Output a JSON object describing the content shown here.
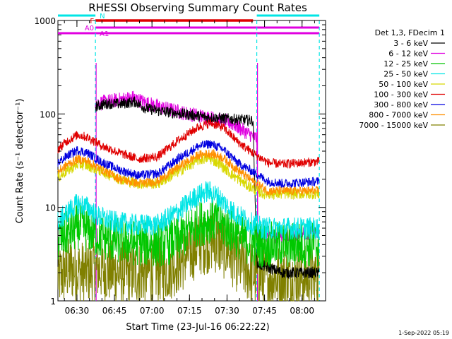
{
  "chart_data": {
    "type": "line",
    "title": "RHESSI Observing Summary Count Rates",
    "xlabel": "Start Time (23-Jul-16 06:22:22)",
    "ylabel": "Count Rate (s⁻¹ detector⁻¹)",
    "yscale": "log",
    "ylim": [
      1,
      1000
    ],
    "xlim_minutes": [
      0,
      107
    ],
    "y_ticks": [
      "1",
      "10",
      "100",
      "1000"
    ],
    "x_ticks": [
      {
        "label": "06:30",
        "t": 7.6
      },
      {
        "label": "06:45",
        "t": 22.6
      },
      {
        "label": "07:00",
        "t": 37.6
      },
      {
        "label": "07:15",
        "t": 52.6
      },
      {
        "label": "07:30",
        "t": 67.6
      },
      {
        "label": "07:45",
        "t": 82.6
      },
      {
        "label": "08:00",
        "t": 97.6
      }
    ],
    "timestamp": "1-Sep-2022 05:19",
    "legend_title": "Det 1,3, FDecim 1",
    "legend_position": "right",
    "flags": [
      {
        "label": "N",
        "color": "#00e5e5",
        "segments": [
          [
            0,
            15
          ],
          [
            79.5,
            104.5
          ]
        ]
      },
      {
        "label": "F",
        "color": "#e00000",
        "segments": [
          [
            15,
            78
          ]
        ]
      },
      {
        "label": "A0",
        "color": "#e000e0",
        "segments": [
          [
            15,
            104.5
          ]
        ]
      },
      {
        "label": "A1",
        "color": "#e000e0",
        "segments": [
          [
            0,
            104.5
          ]
        ]
      }
    ],
    "attenuator_lines": [
      {
        "t": 15,
        "color": "#e000e0"
      },
      {
        "t": 79.5,
        "color": "#e000e0"
      }
    ],
    "saa_lines": [
      {
        "t": 15,
        "color": "#00e5e5"
      },
      {
        "t": 79.5,
        "color": "#00e5e5"
      },
      {
        "t": 104.5,
        "color": "#00e5e5"
      }
    ],
    "series": [
      {
        "name": "3 - 6 keV",
        "color": "#000000",
        "points": [
          [
            15,
            120
          ],
          [
            20,
            130
          ],
          [
            25,
            128
          ],
          [
            31,
            135
          ],
          [
            35,
            115
          ],
          [
            40,
            108
          ],
          [
            50,
            100
          ],
          [
            60,
            92
          ],
          [
            70,
            88
          ],
          [
            78,
            85
          ],
          [
            79.5,
            2.5
          ],
          [
            90,
            2.0
          ],
          [
            104.5,
            2.0
          ]
        ]
      },
      {
        "name": "6 - 12 keV",
        "color": "#e000e0",
        "points": [
          [
            15,
            130
          ],
          [
            22,
            138
          ],
          [
            30,
            150
          ],
          [
            34,
            135
          ],
          [
            40,
            120
          ],
          [
            50,
            103
          ],
          [
            58,
            94
          ],
          [
            64,
            88
          ],
          [
            70,
            78
          ],
          [
            76,
            62
          ],
          [
            79.5,
            55
          ],
          [
            80,
            5
          ],
          [
            90,
            5
          ],
          [
            104.5,
            5.5
          ]
        ]
      },
      {
        "name": "12 - 25 keV",
        "color": "#00c800",
        "points": [
          [
            0,
            4.5
          ],
          [
            5,
            5.5
          ],
          [
            8,
            6.2
          ],
          [
            12,
            5.8
          ],
          [
            16,
            5
          ],
          [
            22,
            4.5
          ],
          [
            30,
            4.2
          ],
          [
            40,
            4.0
          ],
          [
            48,
            4.5
          ],
          [
            55,
            6.5
          ],
          [
            62,
            7.5
          ],
          [
            68,
            6
          ],
          [
            74,
            4.5
          ],
          [
            80,
            4
          ],
          [
            90,
            4
          ],
          [
            104.5,
            4
          ]
        ]
      },
      {
        "name": "25 - 50 keV",
        "color": "#00e5e5",
        "points": [
          [
            0,
            7
          ],
          [
            4,
            9
          ],
          [
            8,
            11
          ],
          [
            12,
            10
          ],
          [
            16,
            8
          ],
          [
            22,
            7
          ],
          [
            30,
            6.5
          ],
          [
            40,
            6.5
          ],
          [
            48,
            9
          ],
          [
            55,
            13
          ],
          [
            60,
            15
          ],
          [
            64,
            13
          ],
          [
            70,
            9
          ],
          [
            76,
            7
          ],
          [
            82,
            6
          ],
          [
            90,
            6
          ],
          [
            104.5,
            6
          ]
        ]
      },
      {
        "name": "50 - 100 keV",
        "color": "#d8d800",
        "points": [
          [
            0,
            21
          ],
          [
            4,
            25
          ],
          [
            8,
            29
          ],
          [
            12,
            28
          ],
          [
            18,
            24
          ],
          [
            25,
            20
          ],
          [
            32,
            18
          ],
          [
            40,
            18
          ],
          [
            48,
            24
          ],
          [
            56,
            32
          ],
          [
            60,
            34
          ],
          [
            64,
            30
          ],
          [
            70,
            22
          ],
          [
            76,
            17
          ],
          [
            82,
            14
          ],
          [
            90,
            14
          ],
          [
            104.5,
            14
          ]
        ]
      },
      {
        "name": "100 - 300 keV",
        "color": "#e00000",
        "points": [
          [
            0,
            42
          ],
          [
            4,
            52
          ],
          [
            8,
            60
          ],
          [
            12,
            56
          ],
          [
            18,
            45
          ],
          [
            25,
            38
          ],
          [
            32,
            33
          ],
          [
            40,
            35
          ],
          [
            48,
            52
          ],
          [
            56,
            72
          ],
          [
            61,
            80
          ],
          [
            66,
            72
          ],
          [
            72,
            50
          ],
          [
            78,
            38
          ],
          [
            84,
            30
          ],
          [
            90,
            29
          ],
          [
            104.5,
            31
          ]
        ]
      },
      {
        "name": "300 - 800 keV",
        "color": "#0000e0",
        "points": [
          [
            0,
            30
          ],
          [
            4,
            36
          ],
          [
            8,
            41
          ],
          [
            12,
            38
          ],
          [
            18,
            30
          ],
          [
            25,
            25
          ],
          [
            32,
            22
          ],
          [
            40,
            23
          ],
          [
            48,
            33
          ],
          [
            56,
            45
          ],
          [
            61,
            48
          ],
          [
            66,
            42
          ],
          [
            72,
            30
          ],
          [
            78,
            24
          ],
          [
            84,
            19
          ],
          [
            90,
            18
          ],
          [
            104.5,
            19
          ]
        ]
      },
      {
        "name": "800 - 7000 keV",
        "color": "#ff9000",
        "points": [
          [
            0,
            24
          ],
          [
            4,
            29
          ],
          [
            8,
            33
          ],
          [
            12,
            31
          ],
          [
            18,
            25
          ],
          [
            25,
            20
          ],
          [
            32,
            18
          ],
          [
            40,
            19
          ],
          [
            48,
            27
          ],
          [
            56,
            36
          ],
          [
            61,
            38
          ],
          [
            66,
            34
          ],
          [
            72,
            25
          ],
          [
            78,
            19
          ],
          [
            84,
            15
          ],
          [
            90,
            15
          ],
          [
            104.5,
            15
          ]
        ]
      },
      {
        "name": "7000 - 15000 keV",
        "color": "#808000",
        "points": [
          [
            0,
            1.8
          ],
          [
            5,
            2.2
          ],
          [
            10,
            2.0
          ],
          [
            16,
            2.2
          ],
          [
            24,
            2.0
          ],
          [
            34,
            2.0
          ],
          [
            44,
            2.2
          ],
          [
            50,
            2.8
          ],
          [
            56,
            4.0
          ],
          [
            62,
            4.5
          ],
          [
            68,
            3.5
          ],
          [
            74,
            2.3
          ],
          [
            80,
            1.8
          ],
          [
            92,
            1.8
          ],
          [
            104.5,
            1.8
          ]
        ]
      }
    ]
  }
}
